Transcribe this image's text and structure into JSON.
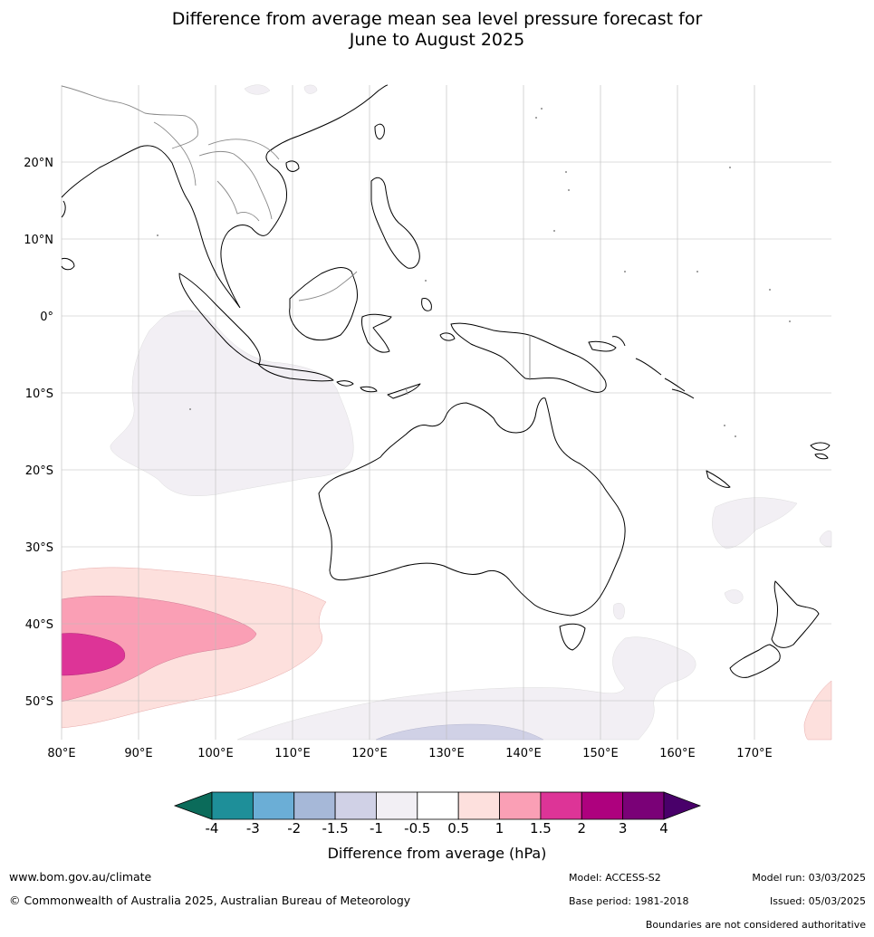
{
  "title_line1": "Difference from average mean sea level pressure forecast for",
  "title_line2": "June to August 2025",
  "lon_labels": [
    "80°E",
    "90°E",
    "100°E",
    "110°E",
    "120°E",
    "130°E",
    "140°E",
    "150°E",
    "160°E",
    "170°E"
  ],
  "lat_labels": [
    "20°N",
    "10°N",
    "0°",
    "10°S",
    "20°S",
    "30°S",
    "40°S",
    "50°S"
  ],
  "colorbar": {
    "ticks": [
      "-4",
      "-3",
      "-2",
      "-1.5",
      "-1",
      "-0.5",
      "0.5",
      "1",
      "1.5",
      "2",
      "3",
      "4"
    ],
    "colors": [
      "#0b6b5a",
      "#1e8f99",
      "#6baed6",
      "#a6b8d8",
      "#d0d1e6",
      "#f2eff4",
      "#ffffff",
      "#fde0dd",
      "#fa9fb5",
      "#dd3497",
      "#ae017e",
      "#7a0177",
      "#49006a"
    ],
    "title": "Difference from average (hPa)"
  },
  "footer": {
    "website": "www.bom.gov.au/climate",
    "copyright": "© Commonwealth of Australia 2025, Australian Bureau of Meteorology",
    "model": "Model: ACCESS-S2",
    "model_run": "Model run: 03/03/2025",
    "base_period": "Base period: 1981-2018",
    "issued": "Issued: 05/03/2025",
    "boundaries": "Boundaries are not considered authoritative"
  }
}
